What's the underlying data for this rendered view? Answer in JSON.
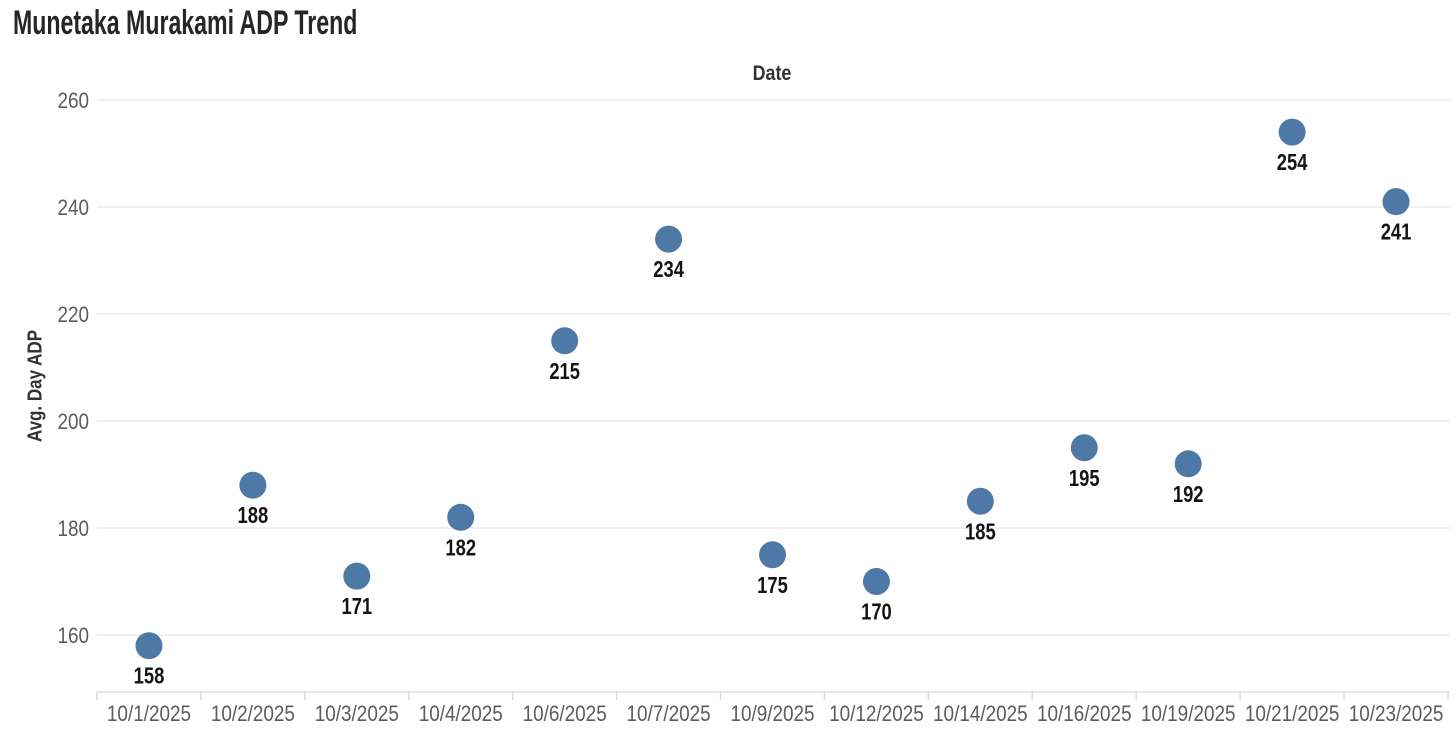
{
  "chart_data": {
    "type": "scatter",
    "title": "Munetaka Murakami ADP Trend",
    "xlabel": "Date",
    "xlabel_position": "top",
    "ylabel": "Avg. Day ADP",
    "categories": [
      "10/1/2025",
      "10/2/2025",
      "10/3/2025",
      "10/4/2025",
      "10/6/2025",
      "10/7/2025",
      "10/9/2025",
      "10/12/2025",
      "10/14/2025",
      "10/16/2025",
      "10/19/2025",
      "10/21/2025",
      "10/23/2025"
    ],
    "values": [
      158,
      188,
      171,
      182,
      215,
      234,
      175,
      170,
      185,
      195,
      192,
      254,
      241
    ],
    "y_ticks": [
      160,
      180,
      200,
      220,
      240,
      260
    ],
    "ylim": [
      149.3,
      262.6
    ],
    "grid": "horizontal-only",
    "legend": "none",
    "point_labels_visible": true,
    "colors": {
      "point": "#4e79a7",
      "point_label": "#141414",
      "axis_text": "#5b5b5b",
      "title_text": "#262626",
      "axis_label_text": "#333333",
      "gridline": "#ebebeb",
      "axis_line": "#e2e2e2",
      "tick": "#d9d9d9",
      "background": "#ffffff"
    }
  }
}
